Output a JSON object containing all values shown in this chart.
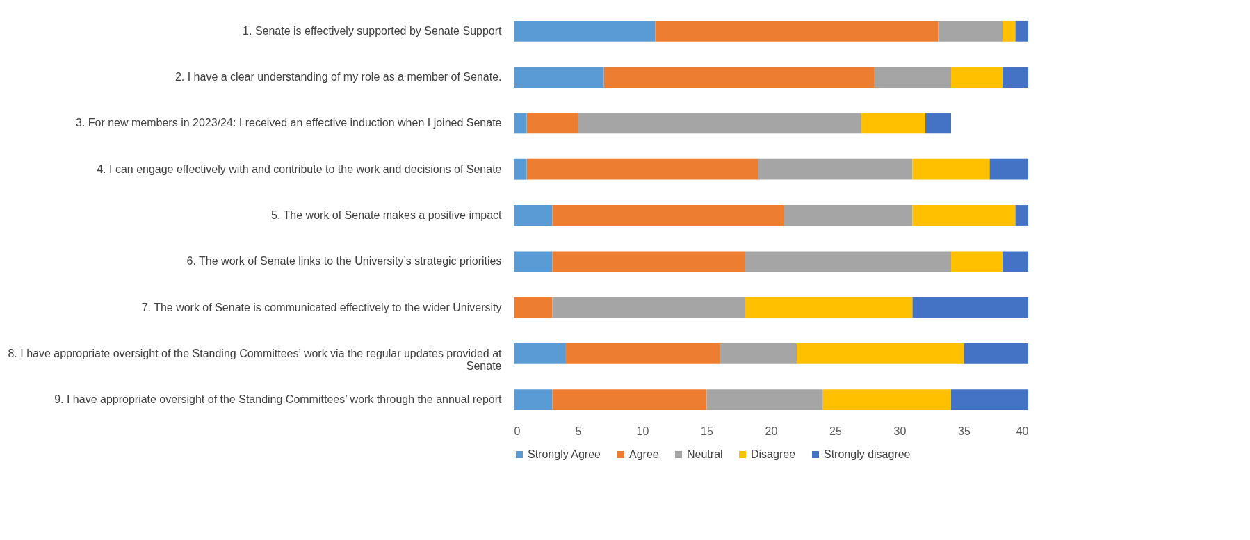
{
  "chart_data": {
    "type": "bar",
    "orientation": "horizontal",
    "stacked": true,
    "categories": [
      "1. Senate is effectively supported by Senate Support",
      "2. I have a clear understanding of my role as a member of Senate.",
      "3. For new members in 2023/24: I received an effective induction when I joined Senate",
      "4. I can engage effectively with and contribute to the work and decisions of Senate",
      "5. The work of Senate makes a positive impact",
      "6. The work of Senate links to the University’s strategic priorities",
      "7. The work of Senate is communicated effectively to the wider University",
      "8. I have appropriate oversight of the Standing Committees’ work via the regular updates provided at Senate",
      "9. I have appropriate oversight of the Standing Committees’ work through the annual report"
    ],
    "series": [
      {
        "name": "Strongly Agree",
        "color": "#5b9bd5",
        "values": [
          11,
          7,
          1,
          1,
          3,
          3,
          0,
          4,
          3
        ]
      },
      {
        "name": "Agree",
        "color": "#ed7d31",
        "values": [
          22,
          21,
          4,
          18,
          18,
          15,
          3,
          12,
          12
        ]
      },
      {
        "name": "Neutral",
        "color": "#a5a5a5",
        "values": [
          5,
          6,
          22,
          12,
          10,
          16,
          15,
          6,
          9
        ]
      },
      {
        "name": "Disagree",
        "color": "#ffc000",
        "values": [
          1,
          4,
          5,
          6,
          8,
          4,
          13,
          13,
          10
        ]
      },
      {
        "name": "Strongly disagree",
        "color": "#4472c4",
        "values": [
          1,
          2,
          2,
          3,
          1,
          2,
          9,
          5,
          6
        ]
      }
    ],
    "xlim": [
      0,
      40
    ],
    "xticks": [
      0,
      5,
      10,
      15,
      20,
      25,
      30,
      35,
      40
    ],
    "grid": false,
    "legend": "bottom"
  }
}
